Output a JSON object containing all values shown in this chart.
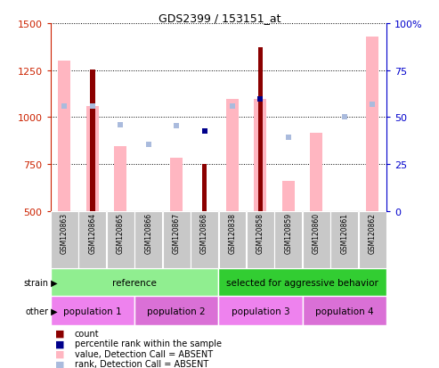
{
  "title": "GDS2399 / 153151_at",
  "samples": [
    "GSM120863",
    "GSM120864",
    "GSM120865",
    "GSM120866",
    "GSM120867",
    "GSM120868",
    "GSM120838",
    "GSM120858",
    "GSM120859",
    "GSM120860",
    "GSM120861",
    "GSM120862"
  ],
  "count_values": [
    null,
    1255,
    null,
    null,
    null,
    750,
    null,
    1370,
    null,
    null,
    null,
    null
  ],
  "pink_bar_values": [
    1300,
    1060,
    845,
    null,
    785,
    null,
    1095,
    1095,
    660,
    915,
    null,
    1430
  ],
  "blue_dot_values": [
    1060,
    1060,
    960,
    855,
    955,
    925,
    1060,
    1095,
    895,
    null,
    1000,
    1070
  ],
  "blue_dot_is_dark": [
    false,
    false,
    false,
    false,
    false,
    true,
    false,
    true,
    false,
    false,
    false,
    false
  ],
  "ylim": [
    500,
    1500
  ],
  "yticks_left": [
    500,
    750,
    1000,
    1250,
    1500
  ],
  "yticks_right": [
    0,
    25,
    50,
    75,
    100
  ],
  "yright_labels": [
    "0",
    "25",
    "50",
    "75",
    "100%"
  ],
  "strain_groups": [
    {
      "label": "reference",
      "start": 0,
      "end": 6,
      "color": "#90EE90"
    },
    {
      "label": "selected for aggressive behavior",
      "start": 6,
      "end": 12,
      "color": "#32CD32"
    }
  ],
  "other_groups": [
    {
      "label": "population 1",
      "start": 0,
      "end": 3,
      "color": "#EE82EE"
    },
    {
      "label": "population 2",
      "start": 3,
      "end": 6,
      "color": "#DA70D6"
    },
    {
      "label": "population 3",
      "start": 6,
      "end": 9,
      "color": "#EE82EE"
    },
    {
      "label": "population 4",
      "start": 9,
      "end": 12,
      "color": "#DA70D6"
    }
  ],
  "legend_items": [
    {
      "label": "count",
      "color": "#CC0000"
    },
    {
      "label": "percentile rank within the sample",
      "color": "#000099"
    },
    {
      "label": "value, Detection Call = ABSENT",
      "color": "#FFB6C1"
    },
    {
      "label": "rank, Detection Call = ABSENT",
      "color": "#AABBDD"
    }
  ],
  "bar_color_dark_red": "#8B0000",
  "bar_color_pink": "#FFB6C1",
  "dot_color_dark_blue": "#00008B",
  "dot_color_light_blue": "#AABBDD",
  "bg_color": "#FFFFFF",
  "plot_bg": "#FFFFFF",
  "left_axis_color": "#CC2200",
  "right_axis_color": "#0000CC",
  "pink_bar_width": 0.45,
  "red_bar_width": 0.18
}
